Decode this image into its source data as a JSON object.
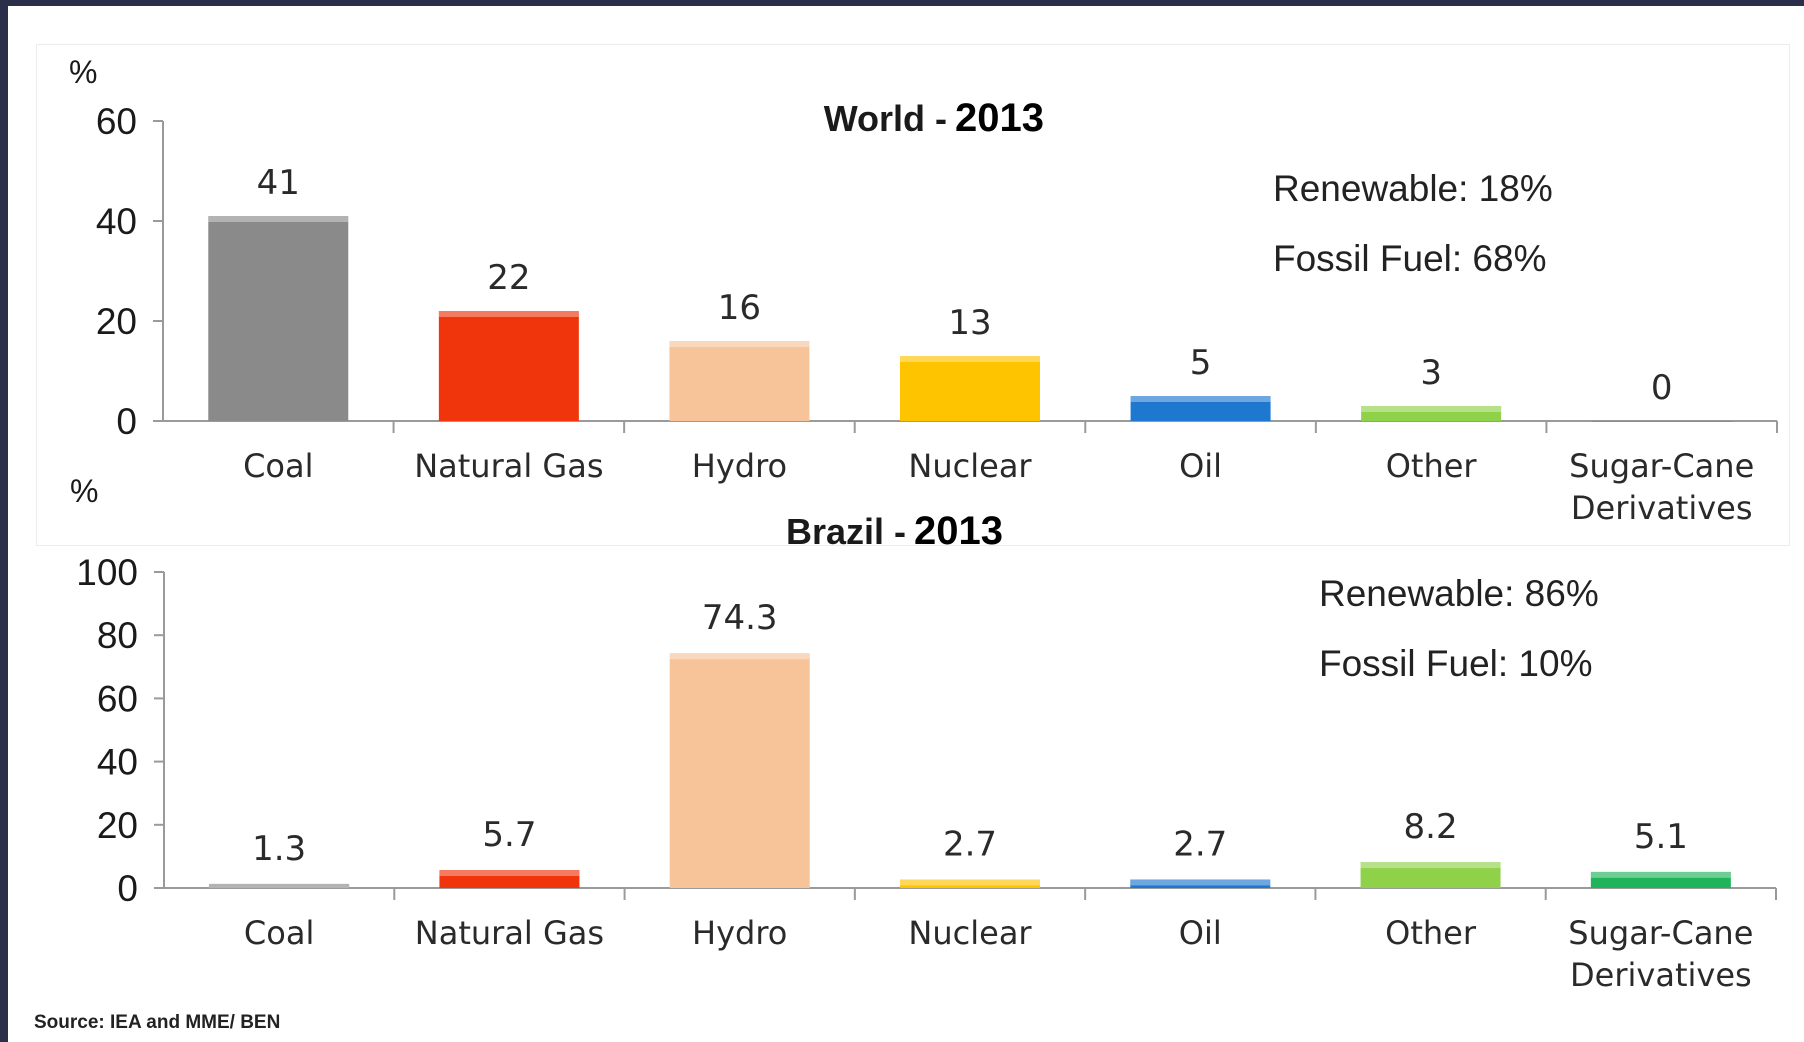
{
  "source": "Source: IEA and MME/ BEN",
  "colors": {
    "coal": "#8a8a8a",
    "natural_gas": "#f0350c",
    "hydro": "#f7c49a",
    "nuclear": "#ffc400",
    "oil": "#1e78d0",
    "other": "#8fd24a",
    "sugar_cane": "#1fb35a"
  },
  "chart_data": [
    {
      "type": "bar",
      "title_prefix": "World - ",
      "title_year": "2013",
      "ylabel": "%",
      "ylim": [
        0,
        60
      ],
      "yticks": [
        "0",
        "20",
        "40",
        "60"
      ],
      "categories": [
        "Coal",
        "Natural Gas",
        "Hydro",
        "Nuclear",
        "Oil",
        "Other",
        "Sugar-Cane Derivatives"
      ],
      "category_lines": [
        [
          "Coal"
        ],
        [
          "Natural Gas"
        ],
        [
          "Hydro"
        ],
        [
          "Nuclear"
        ],
        [
          "Oil"
        ],
        [
          "Other"
        ],
        [
          "Sugar-Cane",
          "Derivatives"
        ]
      ],
      "values": [
        41,
        22,
        16,
        13,
        5,
        3,
        0
      ],
      "labels": [
        "41",
        "22",
        "16",
        "13",
        "5",
        "3",
        "0"
      ],
      "annotations": [
        "Renewable:  18%",
        "Fossil Fuel:  68%"
      ],
      "grid": false
    },
    {
      "type": "bar",
      "title_prefix": "Brazil - ",
      "title_year": "2013",
      "ylabel": "%",
      "ylim": [
        0,
        100
      ],
      "yticks": [
        "0",
        "20",
        "40",
        "60",
        "80",
        "100"
      ],
      "categories": [
        "Coal",
        "Natural Gas",
        "Hydro",
        "Nuclear",
        "Oil",
        "Other",
        "Sugar-Cane Derivatives"
      ],
      "category_lines": [
        [
          "Coal"
        ],
        [
          "Natural Gas"
        ],
        [
          "Hydro"
        ],
        [
          "Nuclear"
        ],
        [
          "Oil"
        ],
        [
          "Other"
        ],
        [
          "Sugar-Cane",
          "Derivatives"
        ]
      ],
      "values": [
        1.3,
        5.7,
        74.3,
        2.7,
        2.7,
        8.2,
        5.1
      ],
      "labels": [
        "1.3",
        "5.7",
        "74.3",
        "2.7",
        "2.7",
        "8.2",
        "5.1"
      ],
      "annotations": [
        "Renewable:  86%",
        "Fossil Fuel:  10%"
      ],
      "grid": false
    }
  ]
}
